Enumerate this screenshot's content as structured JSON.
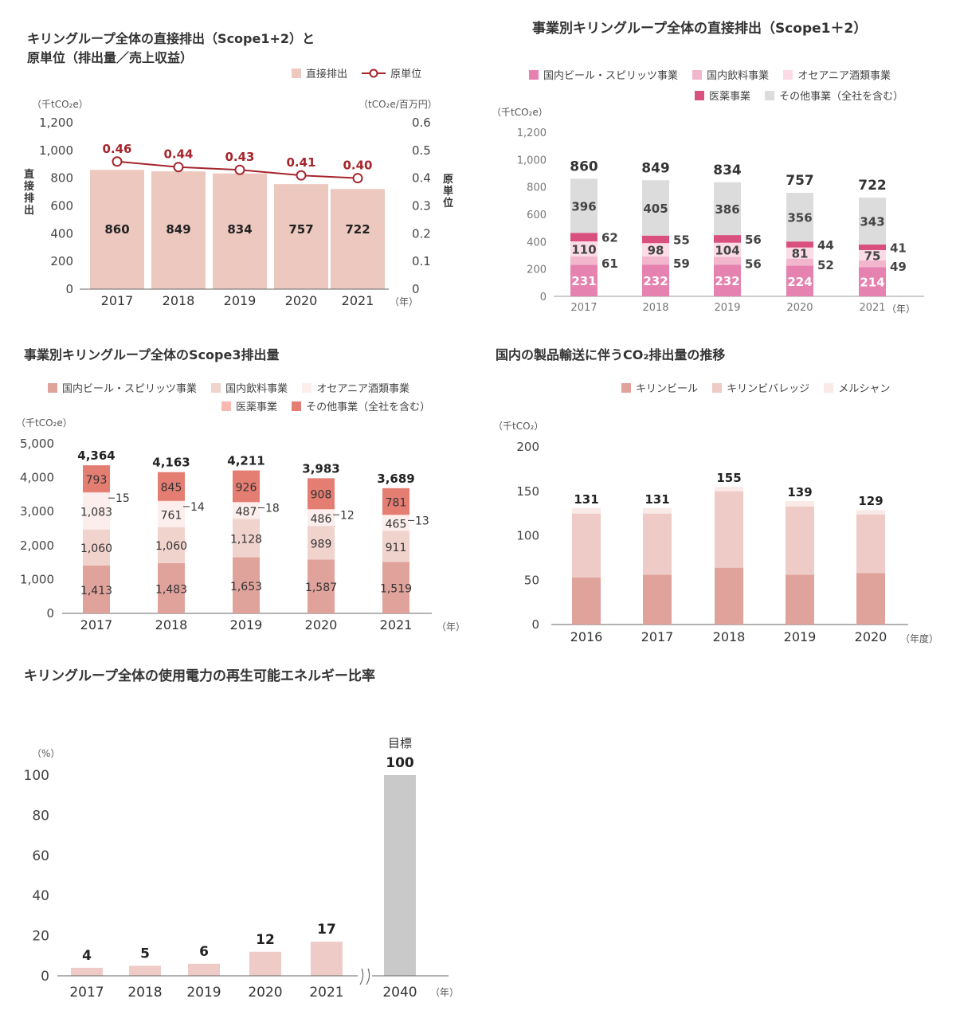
{
  "colors": {
    "c1_bar": "#ecc8bf",
    "c1_line": "#a6252d",
    "c2_beer": "#e682b0",
    "c2_soft": "#f2b6cd",
    "c2_oceania": "#fadbe6",
    "c2_pharma": "#d9507f",
    "c2_other": "#dcdcdc",
    "c3_beer": "#e0a39c",
    "c3_soft": "#f1d3ce",
    "c3_oceania": "#fbeeec",
    "c3_pharma": "#f7b9b2",
    "c3_other": "#e47d72",
    "c4_beer": "#e0a39c",
    "c4_beverage": "#eecbc6",
    "c4_mercian": "#f9eae7",
    "c5_bar": "#eecbc6",
    "c5_target": "#c8c9c8"
  },
  "charts": {
    "c1": {
      "title_line1": "キリングループ全体の直接排出（Scope1+2）と",
      "title_line2": "原単位（排出量／売上収益）",
      "legend": [
        "直接排出",
        "原単位"
      ],
      "left_unit": "（千tCO₂e）",
      "right_unit": "（tCO₂e/百万円）",
      "left_axis_label": "直接排出",
      "right_axis_label": "原単位",
      "year_unit": "（年）"
    },
    "c2": {
      "title": "事業別キリングループ全体の直接排出（Scope1＋2）",
      "legend": [
        "国内ビール・スピリッツ事業",
        "国内飲料事業",
        "オセアニア酒類事業",
        "医薬事業",
        "その他事業（全社を含む）"
      ],
      "unit": "（千tCO₂e）",
      "year_unit": "（年）"
    },
    "c3": {
      "title": "事業別キリングループ全体のScope3排出量",
      "legend": [
        "国内ビール・スピリッツ事業",
        "国内飲料事業",
        "オセアニア酒類事業",
        "医薬事業",
        "その他事業（全社を含む）"
      ],
      "unit": "（千tCO₂e）",
      "year_unit": "（年）"
    },
    "c4": {
      "title": "国内の製品輸送に伴うCO₂排出量の推移",
      "legend": [
        "キリンビール",
        "キリンビバレッジ",
        "メルシャン"
      ],
      "unit": "（千tCO₂）",
      "year_unit": "（年度）"
    },
    "c5": {
      "title": "キリングループ全体の使用電力の再生可能エネルギー比率",
      "unit": "（%）",
      "target_label": "目標",
      "year_unit": "（年）"
    }
  },
  "chart_data": [
    {
      "type": "bar",
      "title": "キリングループ全体の直接排出（Scope1+2）と原単位（排出量／売上収益）",
      "categories": [
        "2017",
        "2018",
        "2019",
        "2020",
        "2021"
      ],
      "ylabel": "直接排出",
      "y2label": "原単位",
      "ylim": [
        0,
        1200
      ],
      "yticks": [
        "0",
        "200",
        "400",
        "600",
        "800",
        "1,000",
        "1,200"
      ],
      "y2lim": [
        0,
        0.6
      ],
      "y2ticks": [
        "0",
        "0.1",
        "0.2",
        "0.3",
        "0.4",
        "0.5",
        "0.6"
      ],
      "series": [
        {
          "name": "直接排出",
          "kind": "bar",
          "values": [
            860,
            849,
            834,
            757,
            722
          ],
          "labels": [
            "860",
            "849",
            "834",
            "757",
            "722"
          ]
        },
        {
          "name": "原単位",
          "kind": "line",
          "axis": "right",
          "values": [
            0.46,
            0.44,
            0.43,
            0.41,
            0.4
          ],
          "labels": [
            "0.46",
            "0.44",
            "0.43",
            "0.41",
            "0.40"
          ]
        }
      ]
    },
    {
      "type": "bar",
      "stacked": true,
      "title": "事業別キリングループ全体の直接排出（Scope1＋2）",
      "categories": [
        "2017",
        "2018",
        "2019",
        "2020",
        "2021"
      ],
      "ylim": [
        0,
        1200
      ],
      "yticks": [
        "0",
        "200",
        "400",
        "600",
        "800",
        "1,000",
        "1,200"
      ],
      "totals": [
        "860",
        "849",
        "834",
        "757",
        "722"
      ],
      "series": [
        {
          "name": "国内ビール・スピリッツ事業",
          "values": [
            231,
            232,
            232,
            224,
            214
          ]
        },
        {
          "name": "国内飲料事業",
          "values": [
            61,
            59,
            56,
            52,
            49
          ]
        },
        {
          "name": "オセアニア酒類事業",
          "values": [
            110,
            98,
            104,
            81,
            75
          ]
        },
        {
          "name": "医薬事業",
          "values": [
            62,
            55,
            56,
            44,
            41
          ]
        },
        {
          "name": "その他事業（全社を含む）",
          "values": [
            396,
            405,
            386,
            356,
            343
          ]
        }
      ]
    },
    {
      "type": "bar",
      "stacked": true,
      "title": "事業別キリングループ全体のScope3排出量",
      "categories": [
        "2017",
        "2018",
        "2019",
        "2020",
        "2021"
      ],
      "ylim": [
        0,
        5000
      ],
      "yticks": [
        "0",
        "1,000",
        "2,000",
        "3,000",
        "4,000",
        "5,000"
      ],
      "totals": [
        "4,364",
        "4,163",
        "4,211",
        "3,983",
        "3,689"
      ],
      "series": [
        {
          "name": "国内ビール・スピリッツ事業",
          "values": [
            1413,
            1483,
            1653,
            1587,
            1519
          ],
          "labels": [
            "1,413",
            "1,483",
            "1,653",
            "1,587",
            "1,519"
          ]
        },
        {
          "name": "国内飲料事業",
          "values": [
            1060,
            1060,
            1128,
            989,
            911
          ],
          "labels": [
            "1,060",
            "1,060",
            "1,128",
            "989",
            "911"
          ]
        },
        {
          "name": "オセアニア酒類事業",
          "values": [
            1083,
            761,
            487,
            486,
            465
          ],
          "labels": [
            "1,083",
            "761",
            "487",
            "486",
            "465"
          ]
        },
        {
          "name": "医薬事業",
          "values": [
            15,
            14,
            18,
            12,
            13
          ],
          "labels": [
            "15",
            "14",
            "18",
            "12",
            "13"
          ]
        },
        {
          "name": "その他事業（全社を含む）",
          "values": [
            793,
            845,
            926,
            908,
            781
          ],
          "labels": [
            "793",
            "845",
            "926",
            "908",
            "781"
          ]
        }
      ]
    },
    {
      "type": "bar",
      "stacked": true,
      "title": "国内の製品輸送に伴うCO₂排出量の推移",
      "categories": [
        "2016",
        "2017",
        "2018",
        "2019",
        "2020"
      ],
      "ylim": [
        0,
        200
      ],
      "yticks": [
        "0",
        "50",
        "100",
        "150",
        "200"
      ],
      "totals": [
        "131",
        "131",
        "155",
        "139",
        "129"
      ],
      "series": [
        {
          "name": "キリンビール",
          "values": [
            53,
            56,
            64,
            56,
            58
          ]
        },
        {
          "name": "キリンビバレッジ",
          "values": [
            72,
            69,
            86,
            77,
            66
          ]
        },
        {
          "name": "メルシャン",
          "values": [
            6,
            6,
            5,
            6,
            5
          ]
        }
      ]
    },
    {
      "type": "bar",
      "title": "キリングループ全体の使用電力の再生可能エネルギー比率",
      "categories": [
        "2017",
        "2018",
        "2019",
        "2020",
        "2021",
        "2040"
      ],
      "ylim": [
        0,
        100
      ],
      "yticks": [
        "0",
        "20",
        "40",
        "60",
        "80",
        "100"
      ],
      "values": [
        4,
        5,
        6,
        12,
        17,
        100
      ],
      "labels": [
        "4",
        "5",
        "6",
        "12",
        "17",
        "100"
      ],
      "target_category": "2040"
    }
  ]
}
